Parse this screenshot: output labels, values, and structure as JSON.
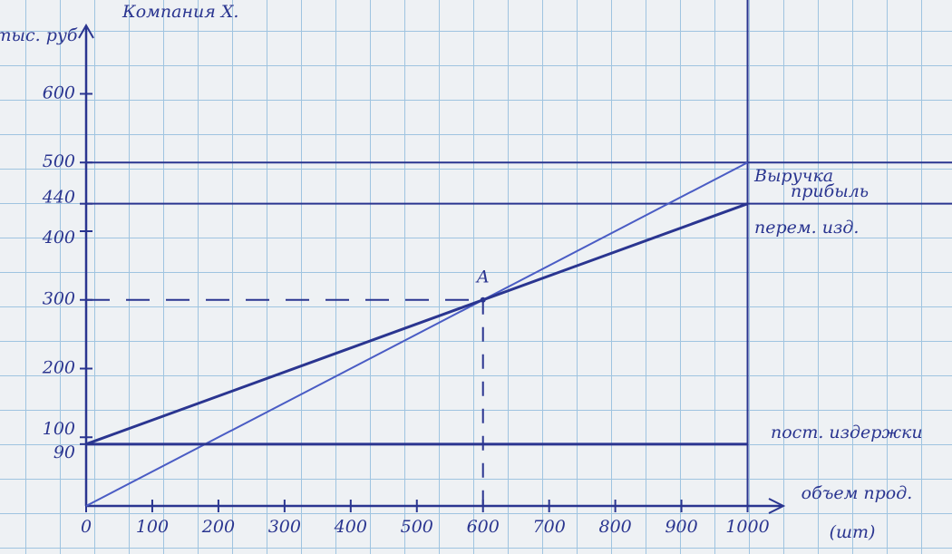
{
  "chart_data": {
    "type": "line",
    "title": "Компания Х.",
    "y_label": "тыс. руб",
    "x_label": "объем прод.",
    "x_unit": "(шт)",
    "xlim": [
      0,
      1050
    ],
    "ylim": [
      0,
      730
    ],
    "xticks": [
      0,
      100,
      200,
      300,
      400,
      500,
      600,
      700,
      800,
      900,
      1000
    ],
    "yticks": [
      90,
      100,
      200,
      300,
      400,
      440,
      500,
      600
    ],
    "reference_y": [
      500,
      440
    ],
    "reference_x": [
      1000
    ],
    "series": [
      {
        "name": "Выручка",
        "color": "#4a5cc4",
        "x": [
          0,
          1000
        ],
        "values": [
          0,
          500
        ]
      },
      {
        "name": "перем. изд.",
        "color": "#2a3590",
        "x": [
          0,
          1000
        ],
        "values": [
          90,
          440
        ]
      },
      {
        "name": "пост. издержки",
        "color": "#2a3590",
        "x": [
          0,
          1000
        ],
        "values": [
          90,
          90
        ]
      }
    ],
    "annotations": [
      {
        "text": "A",
        "x": 600,
        "y": 300
      },
      {
        "text": "прибыль"
      }
    ]
  }
}
